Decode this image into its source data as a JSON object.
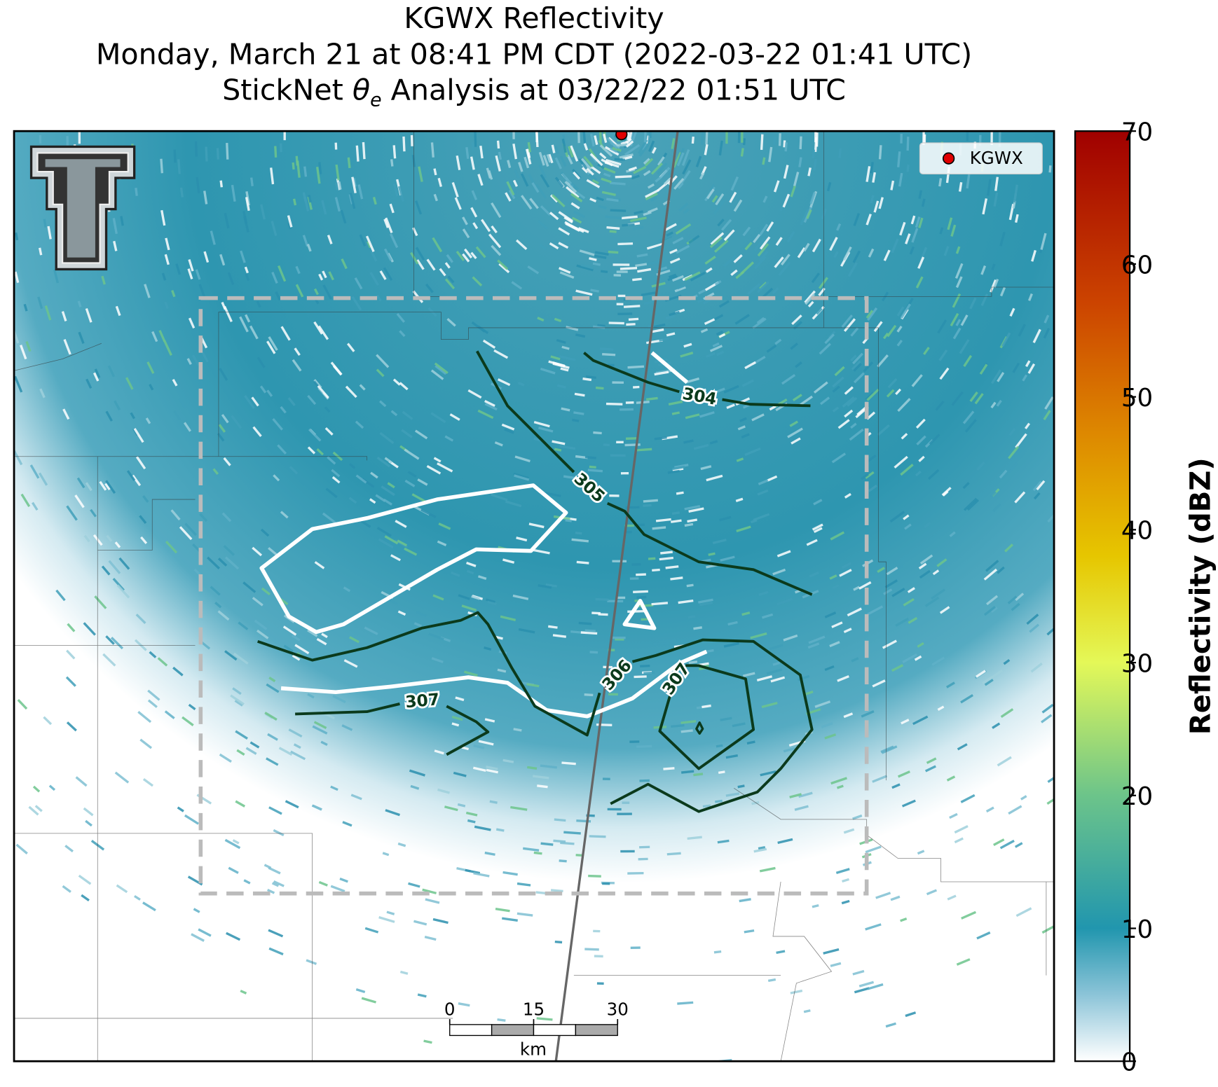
{
  "header": {
    "title": "KGWX Reflectivity",
    "subtitle": "Monday, March 21 at 08:41 PM CDT (2022-03-22 01:41 UTC)",
    "analysis_prefix": "StickNet",
    "analysis_symbol": "θ",
    "analysis_subscript": "e",
    "analysis_suffix": "Analysis at 03/22/22 01:51 UTC"
  },
  "legend": {
    "label": "KGWX",
    "color": "#e00000"
  },
  "contour_labels": [
    "304",
    "305",
    "306",
    "307",
    "307"
  ],
  "scale_bar": {
    "ticks": [
      0,
      15,
      30
    ],
    "unit": "km"
  },
  "colorbar": {
    "label": "Reflectivity (dBZ)",
    "lim": [
      0,
      70
    ],
    "ticks": [
      0,
      10,
      20,
      30,
      40,
      50,
      60,
      70
    ],
    "colors": [
      {
        "value": 0,
        "color": "#ffffff"
      },
      {
        "value": 5,
        "color": "#8cc4d8"
      },
      {
        "value": 10,
        "color": "#2196ae"
      },
      {
        "value": 20,
        "color": "#6cc48a"
      },
      {
        "value": 30,
        "color": "#e4f858"
      },
      {
        "value": 38,
        "color": "#e6c600"
      },
      {
        "value": 47,
        "color": "#de8a00"
      },
      {
        "value": 57,
        "color": "#cc4400"
      },
      {
        "value": 70,
        "color": "#a00000"
      }
    ]
  }
}
